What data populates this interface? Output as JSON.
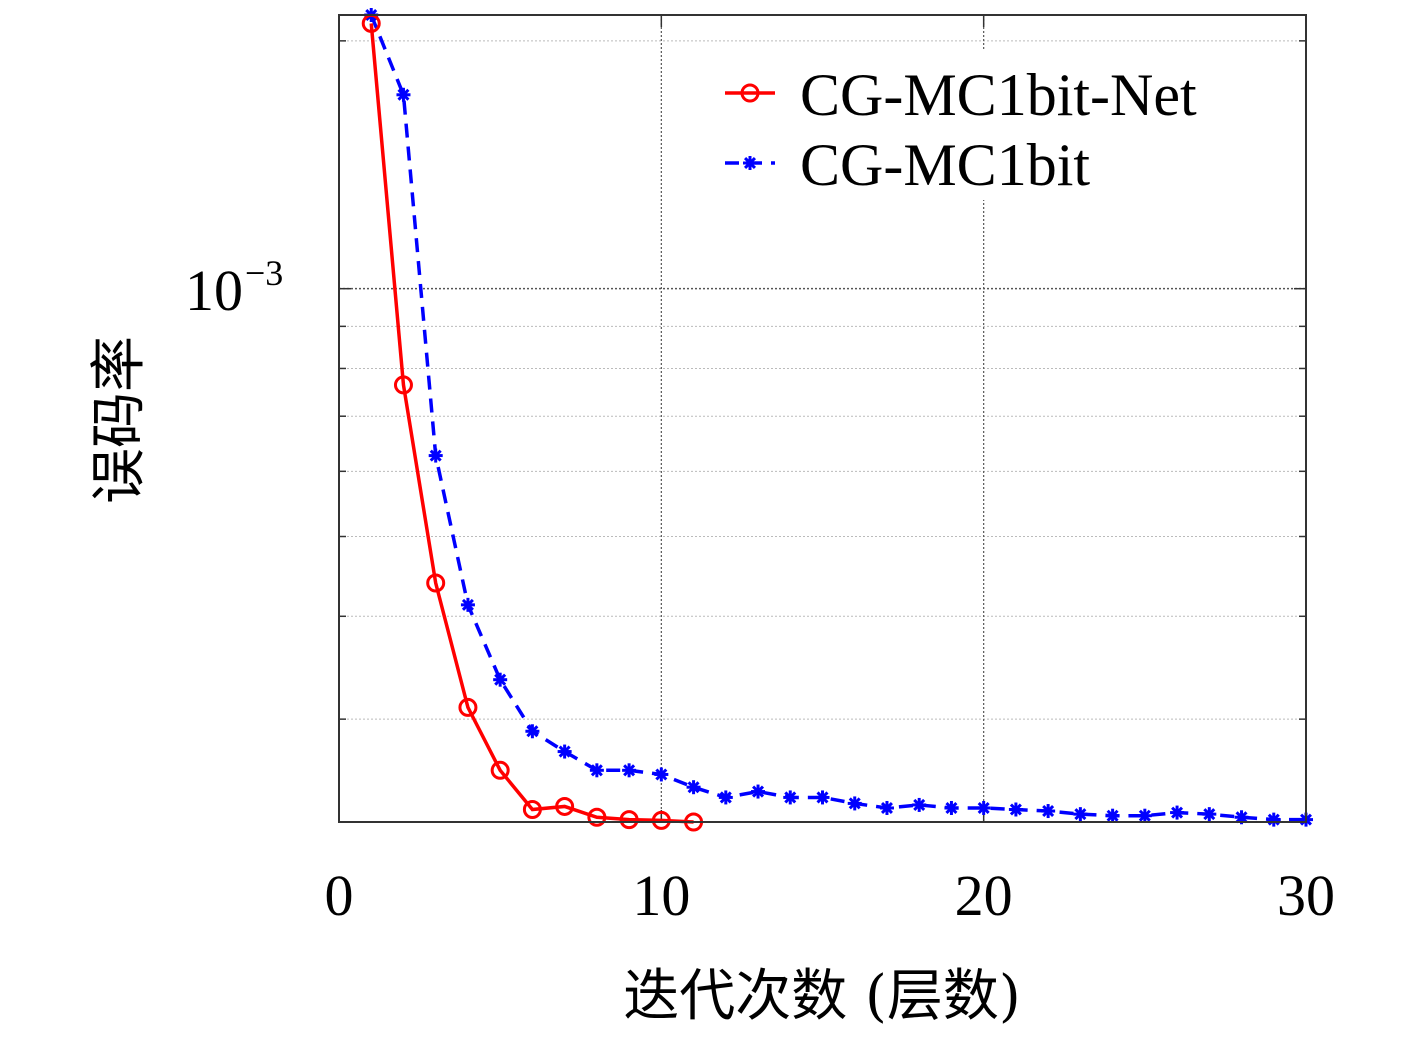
{
  "chart_data": {
    "type": "line",
    "title": "",
    "xlabel": "迭代次数 (层数)",
    "ylabel": "误码率",
    "xlim": [
      0,
      30
    ],
    "ylim": [
      0.000225,
      0.00215
    ],
    "yscale": "log",
    "xticks": [
      0,
      10,
      20,
      30
    ],
    "xtick_labels": [
      "0",
      "10",
      "20",
      "30"
    ],
    "ytick_label": {
      "base": "10",
      "exponent": "−3"
    },
    "grid": true,
    "legend_position": "top-right",
    "series": [
      {
        "name": "CG-MC1bit-Net",
        "color": "#ff0000",
        "marker": "circle",
        "linestyle": "solid",
        "x": [
          1,
          2,
          3,
          4,
          5,
          6,
          7,
          8,
          9,
          10,
          11
        ],
        "values": [
          0.0021,
          0.000764,
          0.000439,
          0.00031,
          0.00026,
          0.000233,
          0.000235,
          0.000228,
          0.0002265,
          0.000226,
          0.000225
        ]
      },
      {
        "name": "CG-MC1bit",
        "color": "#0000ff",
        "marker": "asterisk",
        "linestyle": "dashed",
        "x": [
          1,
          2,
          3,
          4,
          5,
          6,
          7,
          8,
          9,
          10,
          11,
          12,
          13,
          14,
          15,
          16,
          17,
          18,
          19,
          20,
          21,
          22,
          23,
          24,
          25,
          26,
          27,
          28,
          29,
          30
        ],
        "values": [
          0.00215,
          0.00172,
          0.000627,
          0.000413,
          0.000335,
          0.00029,
          0.000274,
          0.00026,
          0.00026,
          0.000257,
          0.000248,
          0.000241,
          0.000245,
          0.000241,
          0.000241,
          0.000237,
          0.000234,
          0.000236,
          0.000234,
          0.000234,
          0.000233,
          0.000232,
          0.00023,
          0.000229,
          0.000229,
          0.000231,
          0.00023,
          0.000228,
          0.0002265,
          0.0002265
        ]
      }
    ]
  }
}
